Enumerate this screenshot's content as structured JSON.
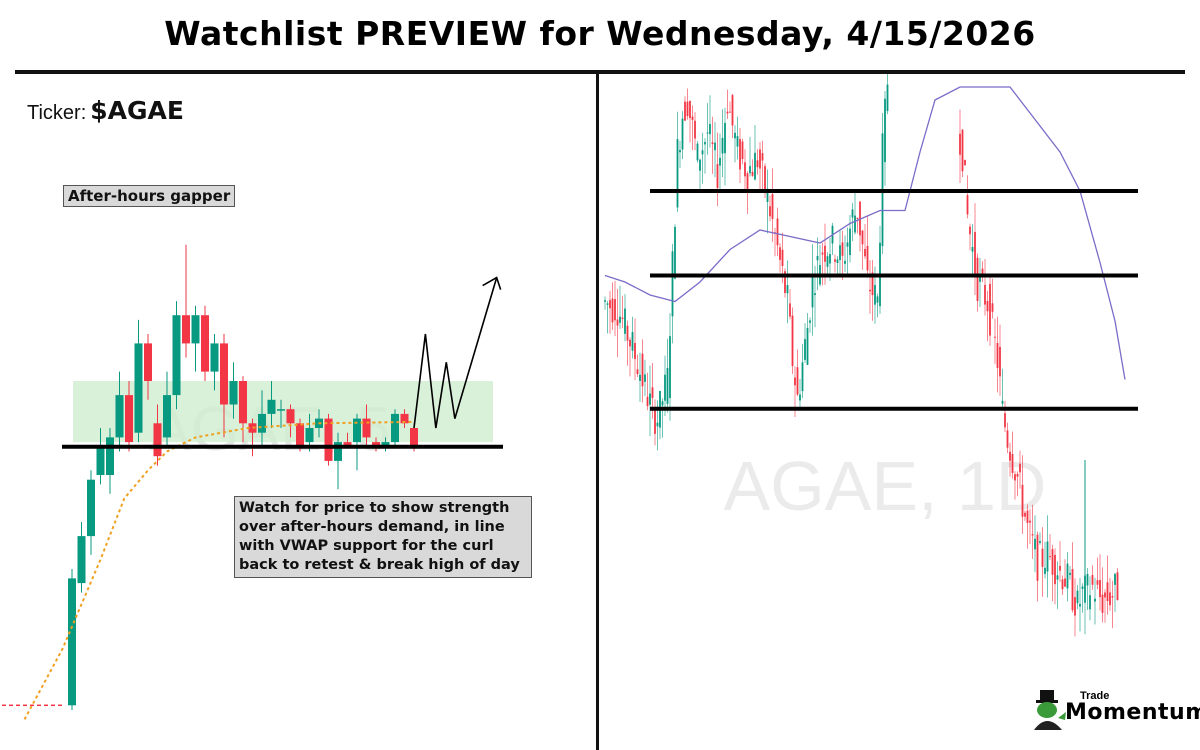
{
  "header": {
    "title": "Watchlist PREVIEW for Wednesday, 4/15/2026"
  },
  "ticker": {
    "label": "Ticker:",
    "symbol": "$AGAE"
  },
  "notes": {
    "tag": "After-hours gapper",
    "plan": "Watch for price to show strength over after-hours demand, in line with VWAP support for the curl back to retest & break high of day"
  },
  "logo": {
    "line1": "Trade",
    "line2": "Momentum"
  },
  "colors": {
    "up": "#089981",
    "down": "#f23645",
    "vwap": "#f0a020",
    "ma": "#7a6cc8",
    "zone": "#cfeccf",
    "level": "#000000"
  },
  "chart_data": [
    {
      "type": "candlestick",
      "watermark": "AGAE, 5",
      "ylim": [
        0,
        100
      ],
      "grid": false,
      "premarket_flat": 1,
      "candles": [
        [
          1,
          30,
          0,
          28
        ],
        [
          27,
          40,
          25,
          37
        ],
        [
          37,
          51,
          33,
          49
        ],
        [
          50,
          60,
          48,
          56
        ],
        [
          50,
          60,
          46,
          58
        ],
        [
          58,
          72,
          55,
          67
        ],
        [
          67,
          70,
          55,
          57
        ],
        [
          59,
          83,
          57,
          78
        ],
        [
          78,
          80,
          66,
          70
        ],
        [
          61,
          65,
          52,
          54
        ],
        [
          58,
          72,
          56,
          67
        ],
        [
          67,
          87,
          64,
          84
        ],
        [
          84,
          99,
          75,
          78
        ],
        [
          78,
          86,
          72,
          84
        ],
        [
          84,
          86,
          70,
          72
        ],
        [
          72,
          80,
          68,
          78
        ],
        [
          78,
          80,
          58,
          65
        ],
        [
          65,
          74,
          62,
          70
        ],
        [
          70,
          71,
          57,
          61
        ],
        [
          61,
          62,
          54,
          59
        ],
        [
          59,
          68,
          56,
          63
        ],
        [
          63,
          70,
          60,
          66
        ],
        [
          64,
          66,
          60,
          64
        ],
        [
          64,
          65,
          58,
          61
        ],
        [
          61,
          62,
          55,
          56
        ],
        [
          57,
          63,
          55,
          60
        ],
        [
          60,
          64,
          58,
          62
        ],
        [
          62,
          63,
          52,
          53
        ],
        [
          53,
          59,
          47,
          57
        ],
        [
          57,
          59,
          56,
          56
        ],
        [
          57,
          63,
          51,
          62
        ],
        [
          62,
          65,
          56,
          58
        ],
        [
          57,
          58,
          55,
          56
        ],
        [
          56,
          58,
          55,
          57
        ],
        [
          57,
          64,
          56,
          63
        ],
        [
          63,
          64,
          60,
          61
        ],
        [
          60,
          61,
          55,
          56
        ]
      ],
      "vwap": [
        [
          -5,
          -2
        ],
        [
          -1,
          13
        ],
        [
          3,
          32
        ],
        [
          5.5,
          45
        ],
        [
          8,
          51
        ],
        [
          10,
          55
        ],
        [
          13,
          58
        ],
        [
          18.5,
          60
        ],
        [
          26,
          61
        ],
        [
          36,
          61.3
        ]
      ],
      "demand_zone": [
        57,
        70
      ],
      "support_level": 56,
      "projection": [
        [
          36,
          60
        ],
        [
          37.2,
          80
        ],
        [
          38.3,
          60
        ],
        [
          39.4,
          74
        ],
        [
          40.3,
          62
        ],
        [
          44.7,
          92
        ]
      ]
    },
    {
      "type": "candlestick",
      "watermark": "AGAE, 1D",
      "ylim": [
        0,
        104
      ],
      "grid": false,
      "closes_a": [
        [
          1,
          69
        ],
        [
          4,
          68
        ],
        [
          7,
          62
        ],
        [
          9,
          57
        ],
        [
          11,
          52
        ],
        [
          12,
          51
        ],
        [
          14,
          57
        ],
        [
          16,
          92
        ],
        [
          17,
          98
        ],
        [
          18,
          100
        ],
        [
          20,
          91
        ],
        [
          22,
          95
        ],
        [
          24,
          89
        ],
        [
          26,
          100
        ],
        [
          28,
          92
        ],
        [
          30,
          89
        ],
        [
          32,
          91
        ],
        [
          34,
          85
        ],
        [
          36,
          77
        ],
        [
          38,
          69
        ],
        [
          39,
          60
        ],
        [
          40,
          54
        ],
        [
          42,
          65
        ],
        [
          43,
          72
        ],
        [
          45,
          77
        ],
        [
          47,
          78
        ],
        [
          49,
          75
        ],
        [
          51,
          82
        ],
        [
          52,
          83
        ],
        [
          54,
          72
        ],
        [
          56,
          69
        ],
        [
          57,
          92
        ],
        [
          58,
          103
        ]
      ],
      "closes_b": [
        [
          72,
          97
        ],
        [
          73,
          92
        ],
        [
          74,
          82
        ],
        [
          76,
          72
        ],
        [
          78,
          69
        ],
        [
          80,
          60
        ],
        [
          81,
          52
        ],
        [
          82,
          48
        ],
        [
          84,
          42
        ],
        [
          86,
          34
        ],
        [
          88,
          29
        ],
        [
          90,
          30
        ],
        [
          92,
          28
        ],
        [
          94,
          26
        ],
        [
          96,
          22
        ],
        [
          97,
          24
        ],
        [
          99,
          25
        ],
        [
          101,
          23
        ],
        [
          103,
          24
        ],
        [
          104,
          25
        ]
      ],
      "moving_average": [
        [
          1,
          73
        ],
        [
          5,
          72
        ],
        [
          10,
          70
        ],
        [
          15,
          69
        ],
        [
          20,
          72
        ],
        [
          26,
          77
        ],
        [
          32,
          80
        ],
        [
          38,
          79
        ],
        [
          44,
          78
        ],
        [
          50,
          81
        ],
        [
          56,
          83
        ],
        [
          61,
          83
        ],
        [
          64,
          92
        ],
        [
          67,
          100
        ],
        [
          72,
          102
        ],
        [
          78,
          102
        ],
        [
          82,
          102
        ],
        [
          86,
          98
        ],
        [
          92,
          92
        ],
        [
          96,
          86
        ],
        [
          100,
          75
        ],
        [
          103,
          66
        ],
        [
          105,
          57
        ]
      ],
      "levels": [
        86,
        73,
        52.5
      ]
    }
  ]
}
